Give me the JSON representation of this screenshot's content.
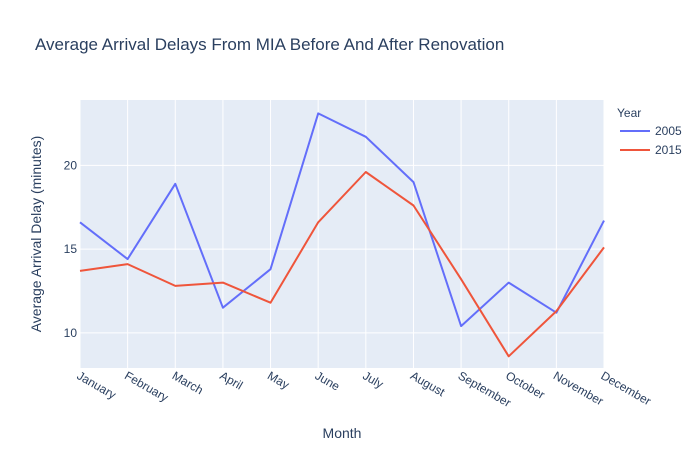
{
  "chart_data": {
    "type": "line",
    "title": "Average Arrival Delays From MIA Before And After Renovation",
    "xlabel": "Month",
    "ylabel": "Average Arrival Delay (minutes)",
    "categories": [
      "January",
      "February",
      "March",
      "April",
      "May",
      "June",
      "July",
      "August",
      "September",
      "October",
      "November",
      "December"
    ],
    "ylim": [
      7.9,
      23.9
    ],
    "yticks": [
      10,
      15,
      20
    ],
    "grid": true,
    "legend": {
      "title": "Year",
      "placement": "top-right"
    },
    "series": [
      {
        "name": "2005",
        "color": "#636efa",
        "values": [
          16.6,
          14.4,
          18.9,
          11.5,
          13.8,
          23.1,
          21.7,
          19.0,
          10.4,
          13.0,
          11.2,
          16.7
        ]
      },
      {
        "name": "2015",
        "color": "#ef553b",
        "values": [
          13.7,
          14.1,
          12.8,
          13.0,
          11.8,
          16.6,
          19.6,
          17.6,
          13.2,
          8.6,
          11.3,
          15.1
        ]
      }
    ]
  }
}
